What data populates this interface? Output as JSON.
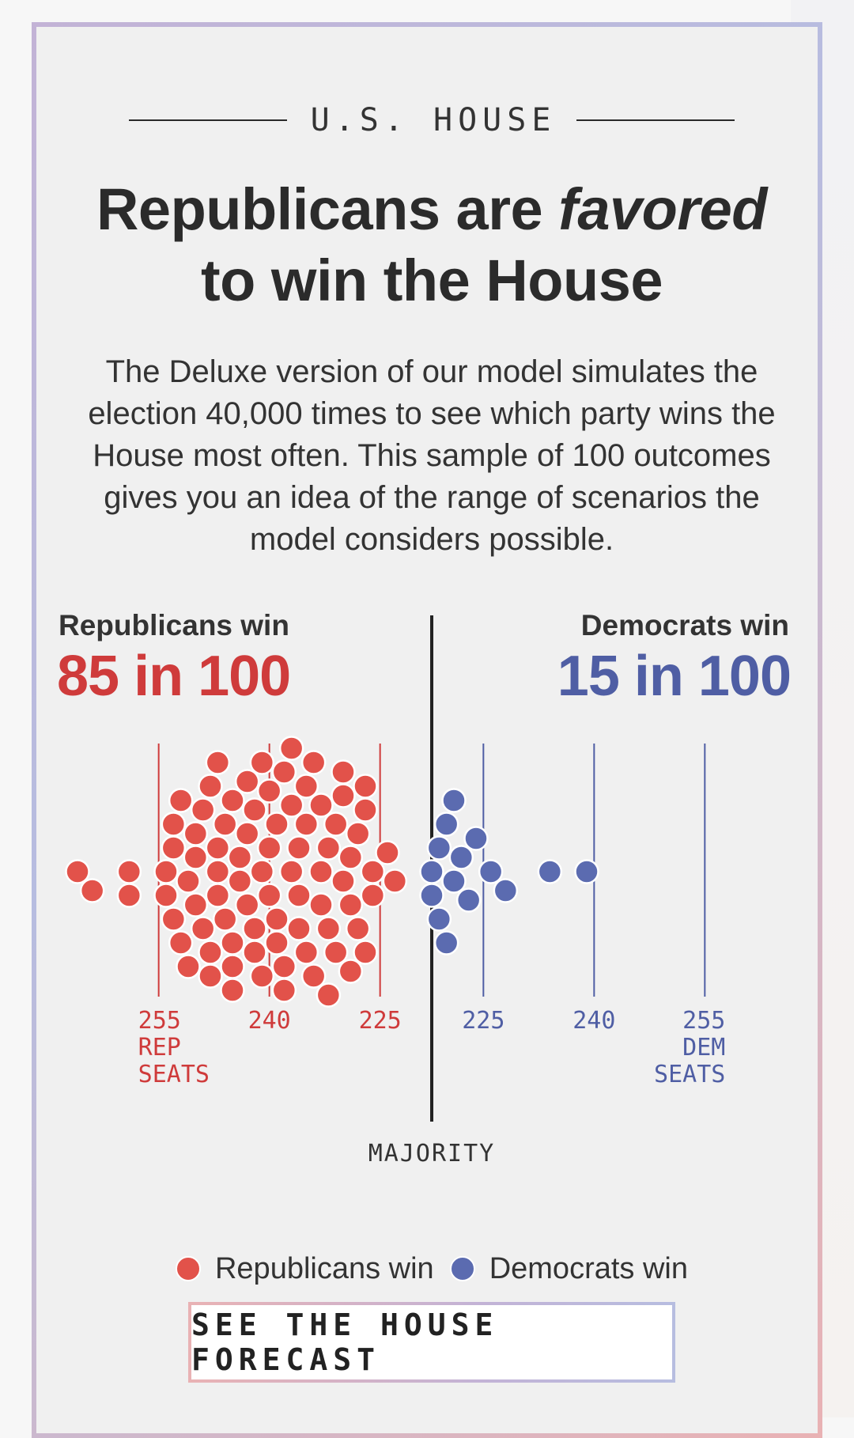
{
  "header": {
    "eyebrow": "U.S. HOUSE",
    "headline_pre": "Republicans are ",
    "headline_em": "favored",
    "headline_post": "to win the House",
    "dek": "The Deluxe version of our model simulates the election 40,000 times to see which party wins the House most often. This sample of 100 outcomes gives you an idea of the range of scenarios the model considers possible."
  },
  "summary": {
    "rep_label": "Republicans win",
    "rep_value": "85 in 100",
    "dem_label": "Democrats win",
    "dem_value": "15 in 100"
  },
  "legend": {
    "rep": "Republicans win",
    "dem": "Democrats win"
  },
  "cta": {
    "label": "SEE THE HOUSE FORECAST"
  },
  "colors": {
    "rep": "#e2524a",
    "dem": "#5b6bb0",
    "rep_text": "#cf3b3b",
    "dem_text": "#4f5ea4",
    "majority_line": "#222222"
  },
  "chart_data": {
    "type": "scatter",
    "title": "",
    "xlabel": "",
    "ylabel": "",
    "majority_label": "MAJORITY",
    "axis": {
      "rep_ticks": [
        {
          "seats": 255,
          "label": "255",
          "sub": [
            "REP",
            "SEATS"
          ]
        },
        {
          "seats": 240,
          "label": "240",
          "sub": []
        },
        {
          "seats": 225,
          "label": "225",
          "sub": []
        }
      ],
      "dem_ticks": [
        {
          "seats": 225,
          "label": "225",
          "sub": []
        },
        {
          "seats": 240,
          "label": "240",
          "sub": []
        },
        {
          "seats": 255,
          "label": "255",
          "sub": [
            "DEM",
            "SEATS"
          ]
        }
      ]
    },
    "series": [
      {
        "name": "Republicans win",
        "color": "#e2524a",
        "seats": [
          266,
          264,
          259,
          259,
          254,
          254,
          253,
          253,
          253,
          252,
          252,
          251,
          251,
          250,
          250,
          250,
          249,
          249,
          248,
          248,
          248,
          247,
          247,
          247,
          247,
          246,
          246,
          245,
          245,
          245,
          245,
          244,
          244,
          243,
          243,
          243,
          242,
          242,
          242,
          241,
          241,
          241,
          240,
          240,
          240,
          239,
          239,
          239,
          238,
          238,
          238,
          237,
          237,
          237,
          236,
          236,
          236,
          235,
          235,
          235,
          234,
          234,
          233,
          233,
          233,
          232,
          232,
          232,
          231,
          231,
          230,
          230,
          230,
          229,
          229,
          229,
          228,
          228,
          227,
          227,
          227,
          226,
          226,
          224,
          223
        ]
      },
      {
        "name": "Democrats win",
        "color": "#5b6bb0",
        "seats": [
          218,
          218,
          219,
          219,
          220,
          220,
          221,
          221,
          222,
          223,
          224,
          226,
          228,
          234,
          239
        ]
      }
    ]
  }
}
